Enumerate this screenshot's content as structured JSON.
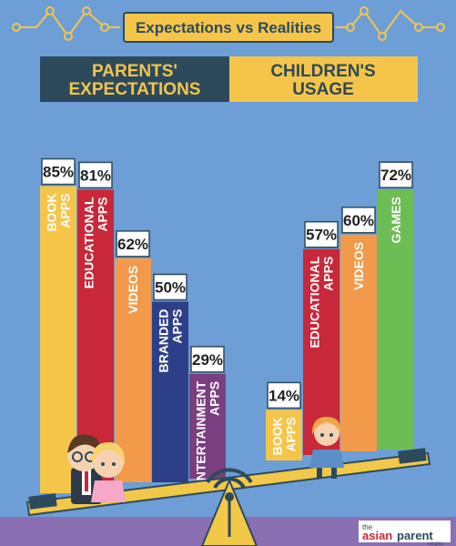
{
  "header": {
    "title": "Expectations vs Realities"
  },
  "legend": {
    "left_line1": "PARENTS'",
    "left_line2": "EXPECTATIONS",
    "right_line1": "CHILDREN'S",
    "right_line2": "USAGE"
  },
  "colors": {
    "background": "#6d9ed6",
    "legend_dark": "#2c4a5c",
    "legend_yellow": "#f5c54a",
    "book": "#f5c54a",
    "educational": "#c8283a",
    "videos": "#f29a4a",
    "branded": "#2e3f8a",
    "entertainment": "#7a3f80",
    "games": "#6dbd55",
    "seesaw": "#f2c849",
    "floor": "#8b6fb3"
  },
  "chart_data": [
    {
      "type": "bar",
      "name": "PARENTS' EXPECTATIONS",
      "categories": [
        "BOOK APPS",
        "EDUCATIONAL APPS",
        "VIDEOS",
        "BRANDED APPS",
        "ENTERTAINMENT APPS"
      ],
      "values": [
        85,
        81,
        62,
        50,
        29
      ],
      "labels": [
        "85%",
        "81%",
        "62%",
        "50%",
        "29%"
      ],
      "colors": [
        "#f5c54a",
        "#c8283a",
        "#f29a4a",
        "#2e3f8a",
        "#7a3f80"
      ],
      "ylim": [
        0,
        100
      ]
    },
    {
      "type": "bar",
      "name": "CHILDREN'S USAGE",
      "categories": [
        "BOOK APPS",
        "EDUCATIONAL APPS",
        "VIDEOS",
        "GAMES"
      ],
      "values": [
        14,
        57,
        60,
        72
      ],
      "labels": [
        "14%",
        "57%",
        "60%",
        "72%"
      ],
      "colors": [
        "#f5c54a",
        "#c8283a",
        "#f29a4a",
        "#6dbd55"
      ],
      "ylim": [
        0,
        100
      ]
    }
  ],
  "logo": {
    "text_the": "the",
    "text_asian": "asian",
    "text_parent": "parent",
    "text_insights": "insights"
  }
}
